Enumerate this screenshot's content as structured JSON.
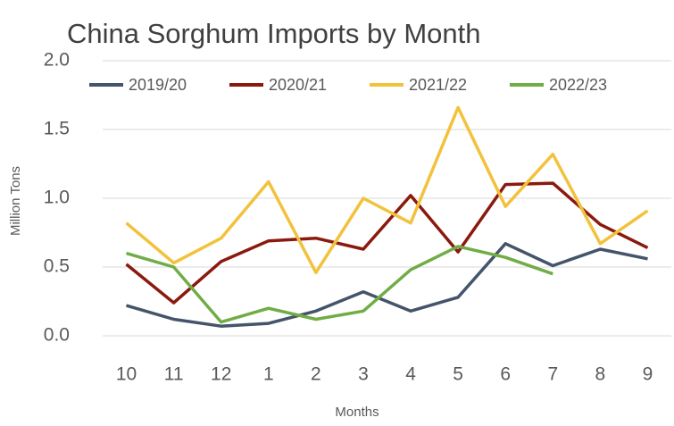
{
  "chart_data": {
    "type": "line",
    "title": "China Sorghum Imports by Month",
    "x_label": "Months",
    "y_label": "Million Tons",
    "categories": [
      "10",
      "11",
      "12",
      "1",
      "2",
      "3",
      "4",
      "5",
      "6",
      "7",
      "8",
      "9"
    ],
    "series": [
      {
        "name": "2019/20",
        "color": "#44546a",
        "values": [
          0.22,
          0.12,
          0.07,
          0.09,
          0.18,
          0.32,
          0.18,
          0.28,
          0.67,
          0.51,
          0.63,
          0.56
        ]
      },
      {
        "name": "2020/21",
        "color": "#8b1a0e",
        "values": [
          0.52,
          0.24,
          0.54,
          0.69,
          0.71,
          0.63,
          1.02,
          0.61,
          1.1,
          1.11,
          0.81,
          0.64
        ]
      },
      {
        "name": "2021/22",
        "color": "#f2c23c",
        "values": [
          0.82,
          0.53,
          0.71,
          1.12,
          0.46,
          1.0,
          0.82,
          1.66,
          0.94,
          1.32,
          0.67,
          0.91
        ]
      },
      {
        "name": "2022/23",
        "color": "#70ad47",
        "values": [
          0.6,
          0.5,
          0.1,
          0.2,
          0.12,
          0.18,
          0.48,
          0.65,
          0.57,
          0.45,
          null,
          null
        ]
      }
    ],
    "ylim": [
      0,
      2
    ],
    "yticks": [
      {
        "value": 0,
        "label": "0.0"
      },
      0.5,
      {
        "value": 1,
        "label": "1.0"
      },
      1.5,
      {
        "value": 2,
        "label": "2.0"
      }
    ],
    "grid": true,
    "legend": "top"
  }
}
